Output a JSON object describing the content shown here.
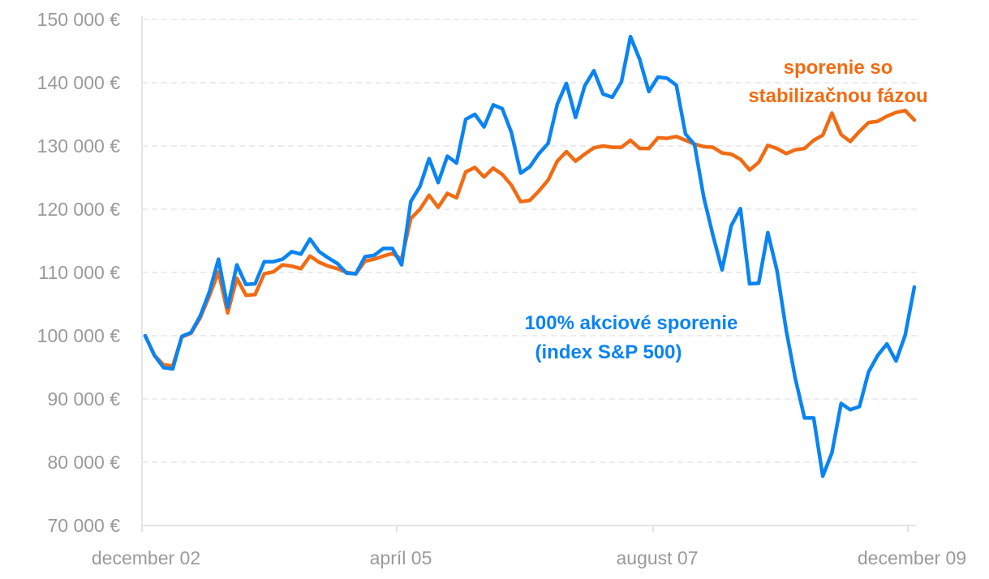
{
  "chart_data": {
    "type": "line",
    "title": "",
    "xlabel": "",
    "ylabel": "",
    "ylim": [
      70000,
      150000
    ],
    "yticks": [
      70000,
      80000,
      90000,
      100000,
      110000,
      120000,
      130000,
      140000,
      150000
    ],
    "ytick_labels": [
      "70 000 €",
      "80 000 €",
      "90 000 €",
      "100 000 €",
      "110 000 €",
      "120 000 €",
      "130 000 €",
      "140 000 €",
      "150 000 €"
    ],
    "xlim": [
      "2002-12",
      "2009-12"
    ],
    "xticks": [
      "2002-12",
      "2005-04",
      "2007-08",
      "2009-12"
    ],
    "xtick_labels": [
      "december 02",
      "apríl 05",
      "august 07",
      "december 09"
    ],
    "grid": "horizontal dashed",
    "x": [
      "2002-12",
      "2003-01",
      "2003-02",
      "2003-03",
      "2003-04",
      "2003-05",
      "2003-06",
      "2003-07",
      "2003-08",
      "2003-09",
      "2003-10",
      "2003-11",
      "2003-12",
      "2004-01",
      "2004-02",
      "2004-03",
      "2004-04",
      "2004-05",
      "2004-06",
      "2004-07",
      "2004-08",
      "2004-09",
      "2004-10",
      "2004-11",
      "2004-12",
      "2005-01",
      "2005-02",
      "2005-03",
      "2005-04",
      "2005-05",
      "2005-06",
      "2005-07",
      "2005-08",
      "2005-09",
      "2005-10",
      "2005-11",
      "2005-12",
      "2006-01",
      "2006-02",
      "2006-03",
      "2006-04",
      "2006-05",
      "2006-06",
      "2006-07",
      "2006-08",
      "2006-09",
      "2006-10",
      "2006-11",
      "2006-12",
      "2007-01",
      "2007-02",
      "2007-03",
      "2007-04",
      "2007-05",
      "2007-06",
      "2007-07",
      "2007-08",
      "2007-09",
      "2007-10",
      "2007-11",
      "2007-12",
      "2008-01",
      "2008-02",
      "2008-03",
      "2008-04",
      "2008-05",
      "2008-06",
      "2008-07",
      "2008-08",
      "2008-09",
      "2008-10",
      "2008-11",
      "2008-12",
      "2009-01",
      "2009-02",
      "2009-03",
      "2009-04",
      "2009-05",
      "2009-06",
      "2009-07",
      "2009-08",
      "2009-09",
      "2009-10",
      "2009-11",
      "2009-12"
    ],
    "series": [
      {
        "name": "sporenie so stabilizačnou fázou",
        "label_lines": [
          "sporenie so",
          "stabilizačnou fázou"
        ],
        "color": "#F26B12",
        "values": [
          100000,
          96900,
          95400,
          95200,
          99800,
          100400,
          102800,
          106300,
          110100,
          103600,
          109100,
          106400,
          106500,
          109800,
          110100,
          111200,
          111000,
          110600,
          112600,
          111600,
          111000,
          110600,
          110000,
          109800,
          111800,
          112100,
          112600,
          113000,
          112100,
          118500,
          120000,
          122200,
          120300,
          122500,
          121800,
          125900,
          126600,
          125100,
          126500,
          125500,
          123800,
          121200,
          121400,
          122900,
          124600,
          127600,
          129100,
          127600,
          128700,
          129700,
          130000,
          129800,
          129800,
          130900,
          129600,
          129600,
          131300,
          131200,
          131500,
          130900,
          130300,
          129900,
          129800,
          128900,
          128700,
          127900,
          126200,
          127400,
          130100,
          129600,
          128800,
          129400,
          129600,
          130900,
          131700,
          135200,
          131800,
          130700,
          132300,
          133700,
          133900,
          134700,
          135300,
          135600,
          134100
        ]
      },
      {
        "name": "100% akciové sporenie (index S&P 500)",
        "label_lines": [
          "100% akciové sporenie",
          "(index S&P 500)"
        ],
        "color": "#0A84F2",
        "values": [
          100000,
          96900,
          94960,
          94750,
          99900,
          100500,
          103100,
          106900,
          112100,
          104500,
          111200,
          108100,
          108200,
          111700,
          111700,
          112100,
          113300,
          112900,
          115300,
          113300,
          112300,
          111400,
          109900,
          109800,
          112500,
          112700,
          113800,
          113800,
          111200,
          121200,
          123600,
          128000,
          124200,
          128400,
          127300,
          134200,
          135000,
          133000,
          136500,
          135900,
          132100,
          125700,
          126700,
          128800,
          130400,
          136600,
          139900,
          134500,
          139500,
          141900,
          138200,
          137700,
          140100,
          147300,
          143700,
          138600,
          140900,
          140700,
          139600,
          131900,
          130200,
          121900,
          115900,
          110400,
          117400,
          120100,
          108200,
          108300,
          116300,
          110300,
          100900,
          93200,
          87000,
          87000,
          77800,
          81500,
          89300,
          88300,
          88800,
          94300,
          96900,
          98700,
          96000,
          100100,
          107700
        ]
      }
    ]
  }
}
